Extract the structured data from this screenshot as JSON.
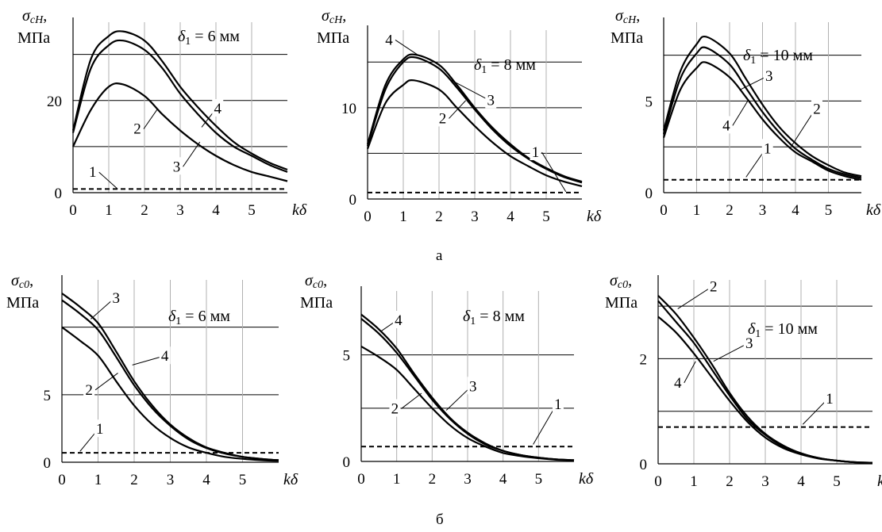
{
  "figure": {
    "caption_top": "а",
    "caption_bottom": "б"
  },
  "chart_data": [
    {
      "type": "line",
      "ylabel_symbol": "σ",
      "ylabel_subscript": "cH",
      "ylabel_unit": "МПа",
      "xlabel": "kδ",
      "annotation_var": "δ",
      "annotation_sub": "1",
      "annotation_text": " = 6 мм",
      "xlim": [
        0,
        6
      ],
      "ylim": [
        0,
        37
      ],
      "xticks": [
        0,
        1,
        2,
        3,
        4,
        5
      ],
      "yticks": [
        0,
        10,
        20,
        30
      ],
      "ytick_labels": [
        "0",
        "",
        "20",
        ""
      ],
      "grid_y": [
        10,
        20,
        30
      ],
      "series": [
        {
          "label": "1",
          "dashed": true,
          "x": [
            0,
            6
          ],
          "y": [
            0.8,
            0.8
          ]
        },
        {
          "label": "2",
          "x": [
            0,
            0.5,
            1,
            1.4,
            2,
            2.5,
            3,
            3.5,
            4,
            4.5,
            5,
            5.5,
            6
          ],
          "y": [
            13,
            27,
            32,
            33,
            31,
            27,
            21.5,
            17,
            13,
            10,
            8,
            6,
            4.5
          ]
        },
        {
          "label": "4",
          "x": [
            0,
            0.5,
            1,
            1.4,
            2,
            2.5,
            3,
            3.5,
            4,
            4.5,
            5,
            5.5,
            6
          ],
          "y": [
            13.5,
            29,
            34,
            35,
            33,
            28.5,
            23,
            18.5,
            14.5,
            11,
            8.5,
            6.5,
            5
          ]
        },
        {
          "label": "3",
          "x": [
            0,
            0.5,
            1,
            1.4,
            2,
            2.5,
            3,
            3.5,
            4,
            4.5,
            5,
            5.5,
            6
          ],
          "y": [
            10,
            18,
            23,
            23.5,
            21,
            17,
            13.5,
            10.5,
            8,
            6,
            4.5,
            3.5,
            2.5
          ]
        }
      ],
      "labels": [
        {
          "text": "1",
          "at": [
            0.55,
            3.4
          ],
          "to": [
            1.25,
            0.8
          ]
        },
        {
          "text": "2",
          "at": [
            1.8,
            12.8
          ],
          "to": [
            2.35,
            18
          ]
        },
        {
          "text": "3",
          "at": [
            2.9,
            4.6
          ],
          "to": [
            3.55,
            11
          ]
        },
        {
          "text": "4",
          "at": [
            4.05,
            17.2
          ],
          "to": [
            3.6,
            14.2
          ]
        }
      ]
    },
    {
      "type": "line",
      "ylabel_symbol": "σ",
      "ylabel_subscript": "cH",
      "ylabel_unit": "МПа",
      "xlabel": "kδ",
      "annotation_var": "δ",
      "annotation_sub": "1",
      "annotation_text": " = 8 мм",
      "xlim": [
        0,
        6
      ],
      "ylim": [
        0,
        18.5
      ],
      "xticks": [
        0,
        1,
        2,
        3,
        4,
        5
      ],
      "yticks": [
        0,
        5,
        10,
        15
      ],
      "ytick_labels": [
        "0",
        "",
        "10",
        ""
      ],
      "grid_y": [
        5,
        10,
        15
      ],
      "series": [
        {
          "label": "1",
          "dashed": true,
          "x": [
            0,
            6
          ],
          "y": [
            0.7,
            0.7
          ]
        },
        {
          "label": "2",
          "x": [
            0,
            0.5,
            1,
            1.3,
            2,
            2.5,
            3,
            3.5,
            4,
            4.5,
            5,
            5.5,
            6
          ],
          "y": [
            5.5,
            10.5,
            12.5,
            13,
            12,
            10,
            8,
            6.2,
            4.7,
            3.6,
            2.6,
            1.9,
            1.4
          ]
        },
        {
          "label": "4",
          "x": [
            0,
            0.5,
            1,
            1.35,
            2,
            2.5,
            3,
            3.5,
            4,
            4.5,
            5,
            5.5,
            6
          ],
          "y": [
            6,
            12.5,
            15.3,
            15.8,
            14.7,
            12.5,
            10,
            7.8,
            6,
            4.5,
            3.4,
            2.5,
            1.9
          ]
        },
        {
          "label": "3",
          "x": [
            0,
            0.5,
            1,
            1.35,
            2,
            2.5,
            3,
            3.5,
            4,
            4.5,
            5,
            5.5,
            6
          ],
          "y": [
            5.8,
            12,
            15,
            15.5,
            14.3,
            12.2,
            9.8,
            7.6,
            5.8,
            4.4,
            3.3,
            2.4,
            1.8
          ]
        }
      ],
      "labels": [
        {
          "text": "4",
          "at": [
            0.6,
            16.9
          ],
          "to": [
            1.4,
            15.8
          ]
        },
        {
          "text": "3",
          "at": [
            3.45,
            10.3
          ],
          "to": [
            2.35,
            13
          ]
        },
        {
          "text": "2",
          "at": [
            2.1,
            8.3
          ],
          "to": [
            2.75,
            10.8
          ]
        },
        {
          "text": "1",
          "at": [
            4.7,
            4.6
          ],
          "to": [
            5.55,
            0.8
          ]
        }
      ]
    },
    {
      "type": "line",
      "ylabel_symbol": "σ",
      "ylabel_subscript": "cH",
      "ylabel_unit": "МПа",
      "xlabel": "kδ",
      "annotation_var": "δ",
      "annotation_sub": "1",
      "annotation_text": " = 10 мм",
      "xlim": [
        0,
        6
      ],
      "ylim": [
        0,
        9.3
      ],
      "xticks": [
        0,
        1,
        2,
        3,
        4,
        5
      ],
      "yticks": [
        0,
        2.5,
        5,
        7.5
      ],
      "ytick_labels": [
        "0",
        "",
        "5",
        ""
      ],
      "grid_y": [
        2.5,
        5,
        7.5
      ],
      "series": [
        {
          "label": "1",
          "dashed": true,
          "x": [
            0,
            6
          ],
          "y": [
            0.7,
            0.7
          ]
        },
        {
          "label": "4",
          "x": [
            0,
            0.5,
            1,
            1.3,
            2,
            2.5,
            3,
            3.5,
            4,
            4.5,
            5,
            5.5,
            6
          ],
          "y": [
            3,
            5.6,
            6.8,
            7.1,
            6.3,
            5.2,
            4,
            3,
            2.2,
            1.7,
            1.2,
            0.9,
            0.7
          ]
        },
        {
          "label": "3",
          "x": [
            0,
            0.5,
            1,
            1.3,
            2,
            2.5,
            3,
            3.5,
            4,
            4.5,
            5,
            5.5,
            6
          ],
          "y": [
            3.2,
            6.2,
            7.6,
            7.9,
            7,
            5.7,
            4.4,
            3.3,
            2.4,
            1.8,
            1.3,
            1,
            0.8
          ]
        },
        {
          "label": "2",
          "x": [
            0,
            0.5,
            1,
            1.3,
            2,
            2.5,
            3,
            3.5,
            4,
            4.5,
            5,
            5.5,
            6
          ],
          "y": [
            3.4,
            6.6,
            8.1,
            8.5,
            7.6,
            6.2,
            4.8,
            3.6,
            2.7,
            2,
            1.5,
            1.1,
            0.9
          ]
        }
      ],
      "labels": [
        {
          "text": "3",
          "at": [
            3.2,
            6.1
          ],
          "to": [
            2.3,
            5.6
          ]
        },
        {
          "text": "4",
          "at": [
            1.9,
            3.4
          ],
          "to": [
            2.55,
            5.0
          ]
        },
        {
          "text": "2",
          "at": [
            4.65,
            4.3
          ],
          "to": [
            3.9,
            2.6
          ]
        },
        {
          "text": "1",
          "at": [
            3.15,
            2.15
          ],
          "to": [
            2.5,
            0.85
          ]
        }
      ]
    },
    {
      "type": "line",
      "ylabel_symbol": "σ",
      "ylabel_subscript": "c0",
      "ylabel_unit": "МПа",
      "xlabel": "kδ",
      "annotation_var": "δ",
      "annotation_sub": "1",
      "annotation_text": " = 6 мм",
      "xlim": [
        0,
        6
      ],
      "ylim": [
        0,
        13.5
      ],
      "xticks": [
        0,
        1,
        2,
        3,
        4,
        5
      ],
      "yticks": [
        0,
        5,
        10
      ],
      "ytick_labels": [
        "0",
        "5",
        ""
      ],
      "grid_y": [
        5,
        10
      ],
      "series": [
        {
          "label": "1",
          "dashed": true,
          "x": [
            0,
            6
          ],
          "y": [
            0.7,
            0.7
          ]
        },
        {
          "label": "2",
          "x": [
            0,
            0.5,
            1,
            1.5,
            2,
            2.5,
            3,
            3.5,
            4,
            4.5,
            5,
            5.5,
            6
          ],
          "y": [
            10,
            9,
            7.9,
            6,
            4.2,
            2.8,
            1.8,
            1.1,
            0.7,
            0.4,
            0.25,
            0.15,
            0.1
          ]
        },
        {
          "label": "3",
          "x": [
            0,
            0.5,
            1,
            1.5,
            2,
            2.5,
            3,
            3.5,
            4,
            4.5,
            5,
            5.5,
            6
          ],
          "y": [
            12.5,
            11.5,
            10.3,
            8.2,
            6,
            4.2,
            2.8,
            1.8,
            1.1,
            0.7,
            0.4,
            0.25,
            0.15
          ]
        },
        {
          "label": "4",
          "x": [
            0,
            0.5,
            1,
            1.5,
            2,
            2.5,
            3,
            3.5,
            4,
            4.5,
            5,
            5.5,
            6
          ],
          "y": [
            12,
            11,
            9.8,
            7.8,
            5.7,
            4,
            2.7,
            1.7,
            1.05,
            0.65,
            0.4,
            0.25,
            0.15
          ]
        }
      ],
      "labels": [
        {
          "text": "3",
          "at": [
            1.5,
            11.8
          ],
          "to": [
            0.8,
            10.6
          ]
        },
        {
          "text": "4",
          "at": [
            2.85,
            7.5
          ],
          "to": [
            1.95,
            7.2
          ]
        },
        {
          "text": "2",
          "at": [
            0.75,
            5.0
          ],
          "to": [
            1.55,
            6.6
          ]
        },
        {
          "text": "1",
          "at": [
            1.05,
            2.1
          ],
          "to": [
            0.5,
            0.8
          ]
        }
      ]
    },
    {
      "type": "line",
      "ylabel_symbol": "σ",
      "ylabel_subscript": "c0",
      "ylabel_unit": "МПа",
      "xlabel": "kδ",
      "annotation_var": "δ",
      "annotation_sub": "1",
      "annotation_text": " = 8 мм",
      "xlim": [
        0,
        6
      ],
      "ylim": [
        0,
        8
      ],
      "xticks": [
        0,
        1,
        2,
        3,
        4,
        5
      ],
      "yticks": [
        0,
        2.5,
        5
      ],
      "ytick_labels": [
        "0",
        "",
        "5"
      ],
      "grid_y": [
        2.5,
        5
      ],
      "series": [
        {
          "label": "1",
          "dashed": true,
          "x": [
            0,
            6
          ],
          "y": [
            0.7,
            0.7
          ]
        },
        {
          "label": "2",
          "x": [
            0,
            0.5,
            1,
            1.5,
            2,
            2.5,
            3,
            3.5,
            4,
            4.5,
            5,
            5.5,
            6
          ],
          "y": [
            5.4,
            4.9,
            4.3,
            3.4,
            2.5,
            1.7,
            1.1,
            0.7,
            0.4,
            0.25,
            0.15,
            0.08,
            0.05
          ]
        },
        {
          "label": "3",
          "x": [
            0,
            0.5,
            1,
            1.5,
            2,
            2.5,
            3,
            3.5,
            4,
            4.5,
            5,
            5.5,
            6
          ],
          "y": [
            6.7,
            6,
            5.1,
            4,
            2.9,
            2,
            1.3,
            0.8,
            0.5,
            0.3,
            0.18,
            0.1,
            0.06
          ]
        },
        {
          "label": "4",
          "x": [
            0,
            0.5,
            1,
            1.5,
            2,
            2.5,
            3,
            3.5,
            4,
            4.5,
            5,
            5.5,
            6
          ],
          "y": [
            6.9,
            6.2,
            5.3,
            4.1,
            3,
            2.05,
            1.35,
            0.85,
            0.5,
            0.3,
            0.18,
            0.1,
            0.06
          ]
        }
      ],
      "labels": [
        {
          "text": "4",
          "at": [
            1.05,
            6.4
          ],
          "to": [
            0.55,
            6.1
          ]
        },
        {
          "text": "3",
          "at": [
            3.15,
            3.3
          ],
          "to": [
            2.4,
            2.4
          ]
        },
        {
          "text": "2",
          "at": [
            0.95,
            2.25
          ],
          "to": [
            1.7,
            3.2
          ]
        },
        {
          "text": "1",
          "at": [
            5.55,
            2.45
          ],
          "to": [
            4.85,
            0.8
          ]
        }
      ]
    },
    {
      "type": "line",
      "ylabel_symbol": "σ",
      "ylabel_subscript": "c0",
      "ylabel_unit": "МПа",
      "xlabel": "kδ",
      "annotation_var": "δ",
      "annotation_sub": "1",
      "annotation_text": " = 10 мм",
      "xlim": [
        0,
        6
      ],
      "ylim": [
        0,
        3.5
      ],
      "xticks": [
        0,
        1,
        2,
        3,
        4,
        5
      ],
      "yticks": [
        0,
        1,
        2,
        3
      ],
      "ytick_labels": [
        "0",
        "",
        "2",
        ""
      ],
      "grid_y": [
        1,
        2,
        3
      ],
      "series": [
        {
          "label": "1",
          "dashed": true,
          "x": [
            0,
            6
          ],
          "y": [
            0.7,
            0.7
          ]
        },
        {
          "label": "4",
          "x": [
            0,
            0.5,
            1,
            1.5,
            2,
            2.5,
            3,
            3.5,
            4,
            4.5,
            5,
            5.5,
            6
          ],
          "y": [
            2.8,
            2.5,
            2.1,
            1.65,
            1.2,
            0.8,
            0.5,
            0.3,
            0.18,
            0.1,
            0.06,
            0.03,
            0.02
          ]
        },
        {
          "label": "3",
          "x": [
            0,
            0.5,
            1,
            1.5,
            2,
            2.5,
            3,
            3.5,
            4,
            4.5,
            5,
            5.5,
            6
          ],
          "y": [
            3.1,
            2.7,
            2.3,
            1.8,
            1.3,
            0.85,
            0.55,
            0.33,
            0.2,
            0.11,
            0.06,
            0.03,
            0.02
          ]
        },
        {
          "label": "2",
          "x": [
            0,
            0.5,
            1,
            1.5,
            2,
            2.5,
            3,
            3.5,
            4,
            4.5,
            5,
            5.5,
            6
          ],
          "y": [
            3.2,
            2.85,
            2.4,
            1.9,
            1.35,
            0.9,
            0.57,
            0.35,
            0.2,
            0.11,
            0.06,
            0.03,
            0.02
          ]
        }
      ],
      "labels": [
        {
          "text": "2",
          "at": [
            1.55,
            3.28
          ],
          "to": [
            0.55,
            2.95
          ]
        },
        {
          "text": "3",
          "at": [
            2.55,
            2.2
          ],
          "to": [
            1.55,
            1.95
          ]
        },
        {
          "text": "4",
          "at": [
            0.55,
            1.45
          ],
          "to": [
            1.05,
            1.95
          ]
        },
        {
          "text": "1",
          "at": [
            4.8,
            1.15
          ],
          "to": [
            4.05,
            0.75
          ]
        }
      ]
    }
  ]
}
